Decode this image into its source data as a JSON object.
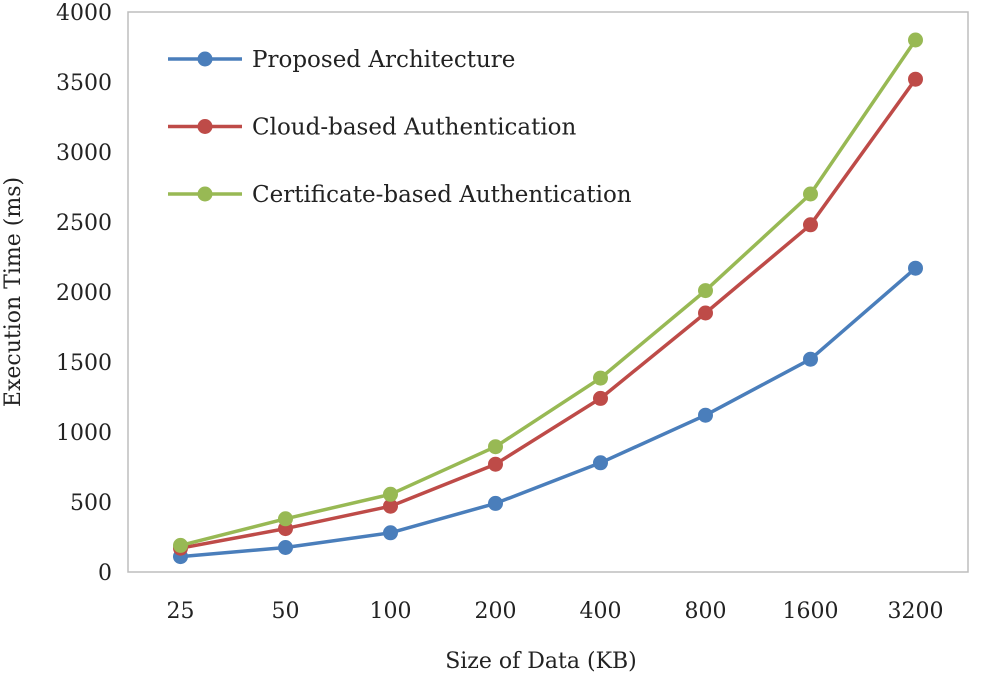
{
  "chart_data": {
    "type": "line",
    "title": "",
    "xlabel": "Size of Data (KB)",
    "ylabel": "Execution Time (ms)",
    "categories": [
      "25",
      "50",
      "100",
      "200",
      "400",
      "800",
      "1600",
      "3200"
    ],
    "ylim": [
      0,
      4000
    ],
    "yticks": [
      0,
      500,
      1000,
      1500,
      2000,
      2500,
      3000,
      3500,
      4000
    ],
    "grid": false,
    "legend_position": "top-left",
    "series": [
      {
        "name": "Proposed Architecture",
        "color": "#4a7ebb",
        "values": [
          110,
          175,
          280,
          490,
          780,
          1120,
          1520,
          2170
        ]
      },
      {
        "name": "Cloud-based Authentication",
        "color": "#be4b48",
        "values": [
          170,
          310,
          470,
          770,
          1240,
          1850,
          2480,
          3520
        ]
      },
      {
        "name": "Certificate-based Authentication",
        "color": "#98b954",
        "values": [
          190,
          380,
          555,
          895,
          1385,
          2010,
          2700,
          3800
        ]
      }
    ]
  }
}
